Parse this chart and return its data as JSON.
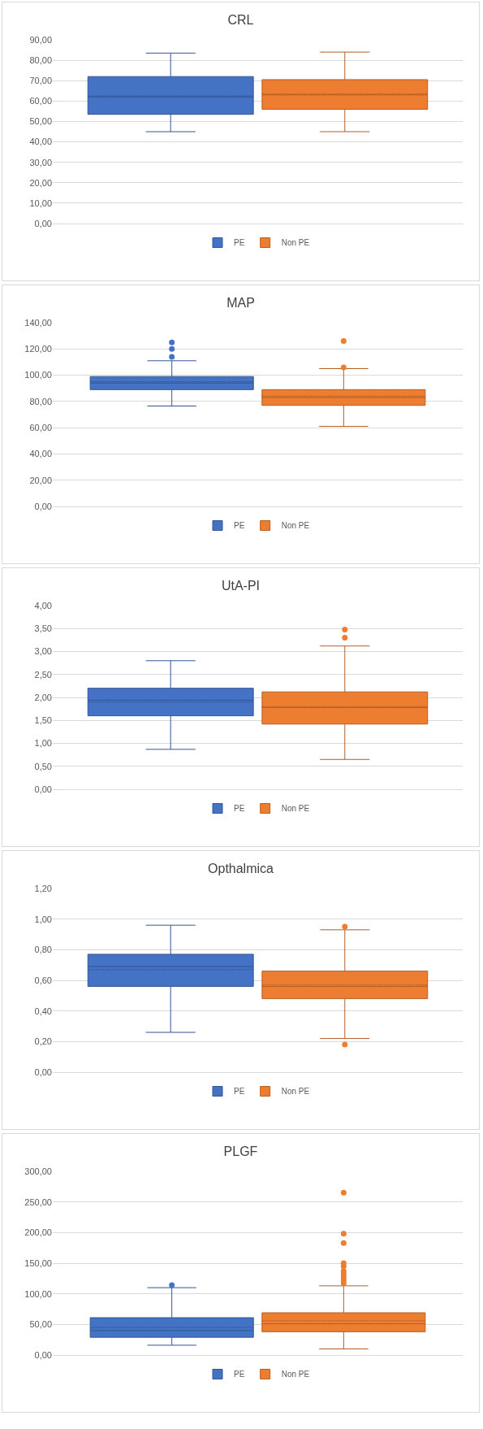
{
  "chart_data": [
    {
      "type": "box",
      "title": "CRL",
      "categories": [
        null
      ],
      "ylim": [
        0,
        90
      ],
      "yticks": [
        {
          "value": 0,
          "label": "0,00"
        },
        {
          "value": 10,
          "label": "10,00"
        },
        {
          "value": 20,
          "label": "20,00"
        },
        {
          "value": 30,
          "label": "30,00"
        },
        {
          "value": 40,
          "label": "40,00"
        },
        {
          "value": 50,
          "label": "50,00"
        },
        {
          "value": 60,
          "label": "60,00"
        },
        {
          "value": 70,
          "label": "70,00"
        },
        {
          "value": 80,
          "label": "80,00"
        },
        {
          "value": 90,
          "label": "90,00"
        }
      ],
      "grid": "y",
      "legend": "bottom",
      "tick_labels": "y",
      "series": [
        {
          "name": "PE",
          "color": "#4472c4",
          "boxes": [
            {
              "low": 45,
              "q1": 53.5,
              "median": 62,
              "q3": 72,
              "high": 83.5,
              "mean": 62.5
            }
          ]
        },
        {
          "name": "Non PE",
          "color": "#ed7d31",
          "boxes": [
            {
              "low": 45,
              "q1": 56,
              "median": 63,
              "q3": 70.5,
              "high": 84,
              "mean": 63.5
            }
          ]
        }
      ]
    },
    {
      "type": "box",
      "title": "MAP",
      "categories": [
        null
      ],
      "ylim": [
        0,
        140
      ],
      "yticks": [
        {
          "value": 0,
          "label": "0,00"
        },
        {
          "value": 20,
          "label": "20,00"
        },
        {
          "value": 40,
          "label": "40,00"
        },
        {
          "value": 60,
          "label": "60,00"
        },
        {
          "value": 80,
          "label": "80,00"
        },
        {
          "value": 100,
          "label": "100,00"
        },
        {
          "value": 120,
          "label": "120,00"
        },
        {
          "value": 140,
          "label": "140,00"
        }
      ],
      "grid": "y",
      "legend": "bottom",
      "tick_labels": "y",
      "series": [
        {
          "name": "PE",
          "color": "#4472c4",
          "boxes": [
            {
              "low": 76.5,
              "q1": 89,
              "median": 94,
              "q3": 99,
              "high": 111,
              "mean": 95,
              "outliers": [
                114,
                120,
                125
              ]
            }
          ]
        },
        {
          "name": "Non PE",
          "color": "#ed7d31",
          "boxes": [
            {
              "low": 61,
              "q1": 77,
              "median": 83,
              "q3": 89,
              "high": 105,
              "mean": 84,
              "outliers": [
                106,
                126
              ]
            }
          ]
        }
      ]
    },
    {
      "type": "box",
      "title": "UtA-PI",
      "categories": [
        null
      ],
      "ylim": [
        0,
        4
      ],
      "yticks": [
        {
          "value": 0,
          "label": "0,00"
        },
        {
          "value": 0.5,
          "label": "0,50"
        },
        {
          "value": 1,
          "label": "1,00"
        },
        {
          "value": 1.5,
          "label": "1,50"
        },
        {
          "value": 2,
          "label": "2,00"
        },
        {
          "value": 2.5,
          "label": "2,50"
        },
        {
          "value": 3,
          "label": "3,00"
        },
        {
          "value": 3.5,
          "label": "3,50"
        },
        {
          "value": 4,
          "label": "4,00"
        }
      ],
      "grid": "y",
      "legend": "bottom",
      "tick_labels": "y",
      "series": [
        {
          "name": "PE",
          "color": "#4472c4",
          "boxes": [
            {
              "low": 0.87,
              "q1": 1.6,
              "median": 1.94,
              "q3": 2.2,
              "high": 2.8,
              "mean": 1.9
            }
          ]
        },
        {
          "name": "Non PE",
          "color": "#ed7d31",
          "boxes": [
            {
              "low": 0.65,
              "q1": 1.42,
              "median": 1.78,
              "q3": 2.12,
              "high": 3.12,
              "mean": 1.8,
              "outliers": [
                3.3,
                3.48
              ]
            }
          ]
        }
      ]
    },
    {
      "type": "box",
      "title": "Opthalmica",
      "categories": [
        null
      ],
      "ylim": [
        0,
        1.2
      ],
      "yticks": [
        {
          "value": 0,
          "label": "0,00"
        },
        {
          "value": 0.2,
          "label": "0,20"
        },
        {
          "value": 0.4,
          "label": "0,40"
        },
        {
          "value": 0.6,
          "label": "0,60"
        },
        {
          "value": 0.8,
          "label": "0,80"
        },
        {
          "value": 1,
          "label": "1,00"
        },
        {
          "value": 1.2,
          "label": "1,20"
        }
      ],
      "grid": "y",
      "legend": "bottom",
      "tick_labels": "y",
      "series": [
        {
          "name": "PE",
          "color": "#4472c4",
          "boxes": [
            {
              "low": 0.26,
              "q1": 0.56,
              "median": 0.69,
              "q3": 0.77,
              "high": 0.96,
              "mean": 0.67
            }
          ]
        },
        {
          "name": "Non PE",
          "color": "#ed7d31",
          "boxes": [
            {
              "low": 0.22,
              "q1": 0.48,
              "median": 0.56,
              "q3": 0.66,
              "high": 0.93,
              "mean": 0.57,
              "outliers": [
                0.18,
                0.95
              ]
            }
          ]
        }
      ]
    },
    {
      "type": "box",
      "title": "PLGF",
      "categories": [
        null
      ],
      "ylim": [
        0,
        300
      ],
      "yticks": [
        {
          "value": 0,
          "label": "0,00"
        },
        {
          "value": 50,
          "label": "50,00"
        },
        {
          "value": 100,
          "label": "100,00"
        },
        {
          "value": 150,
          "label": "150,00"
        },
        {
          "value": 200,
          "label": "200,00"
        },
        {
          "value": 250,
          "label": "250,00"
        },
        {
          "value": 300,
          "label": "300,00"
        }
      ],
      "grid": "y",
      "legend": "bottom",
      "tick_labels": "y",
      "series": [
        {
          "name": "PE",
          "color": "#4472c4",
          "boxes": [
            {
              "low": 16,
              "q1": 29,
              "median": 40,
              "q3": 61,
              "high": 110,
              "mean": 45,
              "outliers": [
                114
              ]
            }
          ]
        },
        {
          "name": "Non PE",
          "color": "#ed7d31",
          "boxes": [
            {
              "low": 10,
              "q1": 38,
              "median": 51,
              "q3": 69,
              "high": 113,
              "mean": 56,
              "outliers": [
                117,
                122,
                127,
                132,
                137,
                145,
                150,
                183,
                198,
                265
              ]
            }
          ]
        }
      ]
    }
  ]
}
